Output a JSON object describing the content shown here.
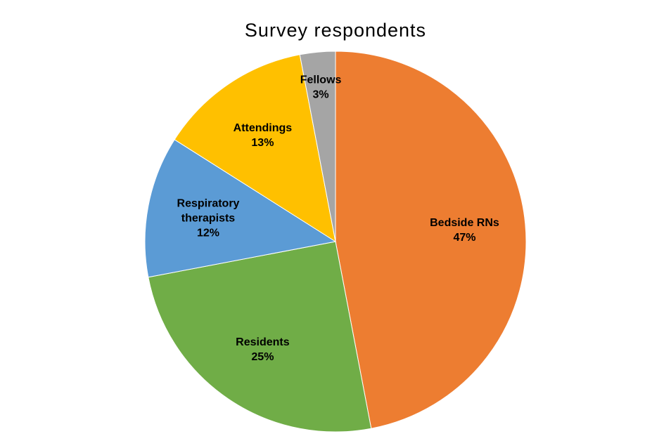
{
  "chart_data": {
    "type": "pie",
    "title": "Survey respondents",
    "start_angle_deg": 0,
    "direction": "clockwise",
    "legend": "none",
    "slices": [
      {
        "name": "Bedside RNs",
        "value": 47,
        "label_lines": [
          "Bedside RNs",
          "47%"
        ],
        "color": "#ED7D31"
      },
      {
        "name": "Residents",
        "value": 25,
        "label_lines": [
          "Residents",
          "25%"
        ],
        "color": "#70AD47"
      },
      {
        "name": "Respiratory therapists",
        "value": 12,
        "label_lines": [
          "Respiratory",
          "therapists",
          "12%"
        ],
        "color": "#5B9BD5"
      },
      {
        "name": "Attendings",
        "value": 13,
        "label_lines": [
          "Attendings",
          "13%"
        ],
        "color": "#FFC000"
      },
      {
        "name": "Fellows",
        "value": 3,
        "label_lines": [
          "Fellows",
          "3%"
        ],
        "color": "#A5A5A5"
      }
    ]
  }
}
